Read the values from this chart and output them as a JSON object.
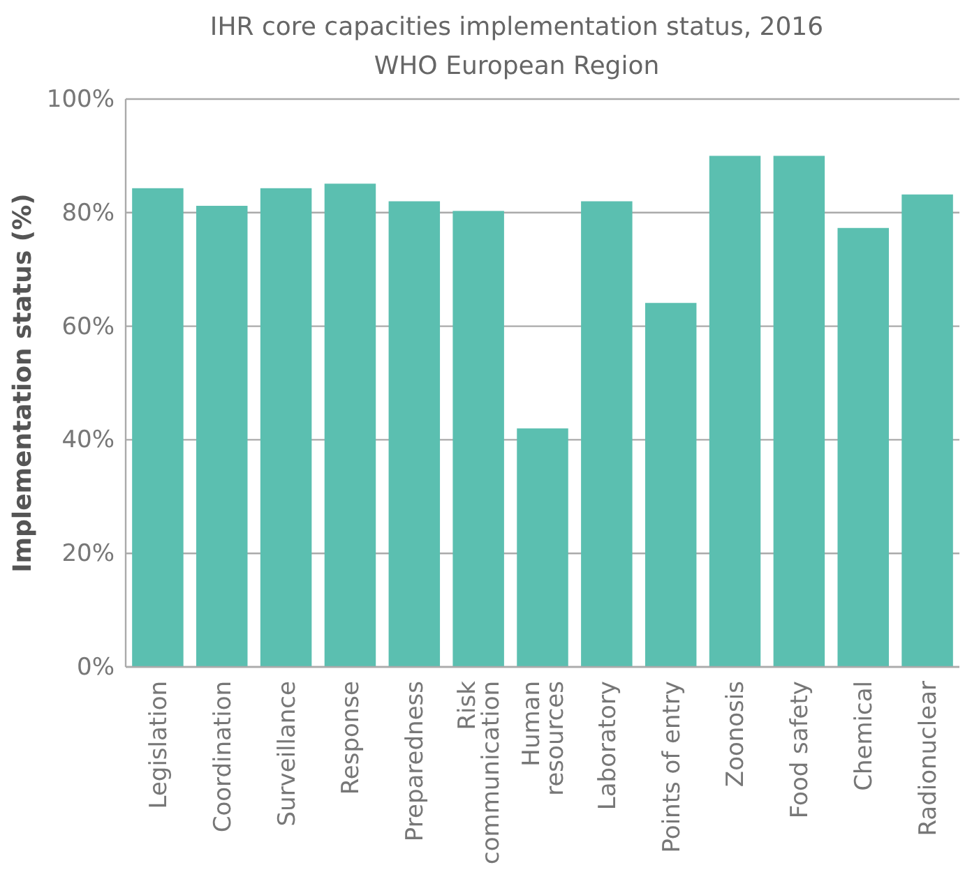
{
  "chart_data": {
    "type": "bar",
    "title": "IHR core capacities implementation status, 2016",
    "subtitle": "WHO European Region",
    "ylabel": "Implementation status (%)",
    "categories": [
      "Legislation",
      "Coordination",
      "Surveillance",
      "Response",
      "Preparedness",
      "Risk\ncommunication",
      "Human\nresources",
      "Laboratory",
      "Points of entry",
      "Zoonosis",
      "Food safety",
      "Chemical",
      "Radionuclear"
    ],
    "values": [
      84.3,
      81.2,
      84.3,
      85.1,
      82,
      80.3,
      42,
      82,
      64.1,
      90,
      90,
      77.3,
      83.2
    ],
    "color": "#5bbfb0",
    "ylim": [
      0,
      100
    ],
    "yticks": [
      {
        "value": 0,
        "label": "0%"
      },
      {
        "value": 20,
        "label": "20%"
      },
      {
        "value": 40,
        "label": "40%"
      },
      {
        "value": 60,
        "label": "60%"
      },
      {
        "value": 80,
        "label": "80%"
      },
      {
        "value": 100,
        "label": "100%"
      }
    ],
    "grid": "y"
  }
}
